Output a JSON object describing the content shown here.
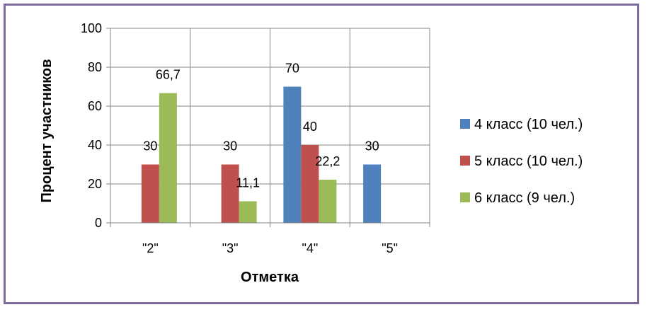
{
  "chart_data": {
    "type": "bar",
    "categories": [
      "\"2\"",
      "\"3\"",
      "\"4\"",
      "\"5\""
    ],
    "series": [
      {
        "name": "4 класс (10 чел.)",
        "values": [
          null,
          null,
          70,
          30
        ],
        "labels": [
          "",
          "",
          "70",
          "30"
        ],
        "color": "#4f81bd"
      },
      {
        "name": "5 класс (10 чел.)",
        "values": [
          30,
          30,
          40,
          null
        ],
        "labels": [
          "30",
          "30",
          "40",
          ""
        ],
        "color": "#c0504d"
      },
      {
        "name": "6 класс (9 чел.)",
        "values": [
          66.7,
          11.1,
          22.2,
          null
        ],
        "labels": [
          "66,7",
          "11,1",
          "22,2",
          ""
        ],
        "color": "#9bbb59"
      }
    ],
    "yticks": [
      "0",
      "20",
      "40",
      "60",
      "80",
      "100"
    ],
    "ylim": [
      0,
      100
    ],
    "xlabel": "Отметка",
    "ylabel": "Процент участников",
    "grid": true,
    "legend": "right",
    "frame_color": "#7f6a9c"
  }
}
